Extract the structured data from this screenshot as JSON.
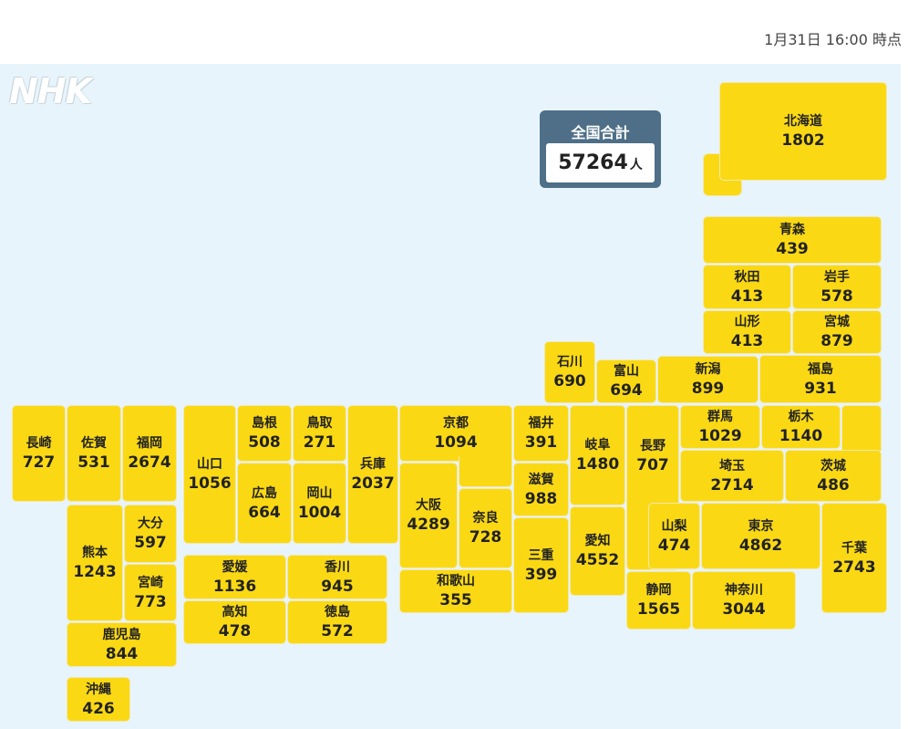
{
  "timestamp": "1月31日 16:00 時点",
  "logo": "NHK",
  "total": {
    "label": "全国合計",
    "value": "57264",
    "unit": "人"
  },
  "prefectures": {
    "hokkaido": {
      "name": "北海道",
      "value": "1802"
    },
    "aomori": {
      "name": "青森",
      "value": "439"
    },
    "akita": {
      "name": "秋田",
      "value": "413"
    },
    "iwate": {
      "name": "岩手",
      "value": "578"
    },
    "yamagata": {
      "name": "山形",
      "value": "413"
    },
    "miyagi": {
      "name": "宮城",
      "value": "879"
    },
    "ishikawa": {
      "name": "石川",
      "value": "690"
    },
    "toyama": {
      "name": "富山",
      "value": "694"
    },
    "niigata": {
      "name": "新潟",
      "value": "899"
    },
    "fukushima": {
      "name": "福島",
      "value": "931"
    },
    "nagasaki": {
      "name": "長崎",
      "value": "727"
    },
    "saga": {
      "name": "佐賀",
      "value": "531"
    },
    "fukuoka": {
      "name": "福岡",
      "value": "2674"
    },
    "yamaguchi": {
      "name": "山口",
      "value": "1056"
    },
    "shimane": {
      "name": "島根",
      "value": "508"
    },
    "tottori": {
      "name": "鳥取",
      "value": "271"
    },
    "hiroshima": {
      "name": "広島",
      "value": "664"
    },
    "okayama": {
      "name": "岡山",
      "value": "1004"
    },
    "hyogo": {
      "name": "兵庫",
      "value": "2037"
    },
    "kyoto": {
      "name": "京都",
      "value": "1094"
    },
    "osaka": {
      "name": "大阪",
      "value": "4289"
    },
    "nara": {
      "name": "奈良",
      "value": "728"
    },
    "wakayama": {
      "name": "和歌山",
      "value": "355"
    },
    "fukui": {
      "name": "福井",
      "value": "391"
    },
    "shiga": {
      "name": "滋賀",
      "value": "988"
    },
    "mie": {
      "name": "三重",
      "value": "399"
    },
    "gifu": {
      "name": "岐阜",
      "value": "1480"
    },
    "aichi": {
      "name": "愛知",
      "value": "4552"
    },
    "nagano": {
      "name": "長野",
      "value": "707"
    },
    "gunma": {
      "name": "群馬",
      "value": "1029"
    },
    "tochigi": {
      "name": "栃木",
      "value": "1140"
    },
    "saitama": {
      "name": "埼玉",
      "value": "2714"
    },
    "ibaraki": {
      "name": "茨城",
      "value": "486"
    },
    "yamanashi": {
      "name": "山梨",
      "value": "474"
    },
    "tokyo": {
      "name": "東京",
      "value": "4862"
    },
    "chiba": {
      "name": "千葉",
      "value": "2743"
    },
    "shizuoka": {
      "name": "静岡",
      "value": "1565"
    },
    "kanagawa": {
      "name": "神奈川",
      "value": "3044"
    },
    "kumamoto": {
      "name": "熊本",
      "value": "1243"
    },
    "oita": {
      "name": "大分",
      "value": "597"
    },
    "miyazaki": {
      "name": "宮崎",
      "value": "773"
    },
    "kagoshima": {
      "name": "鹿児島",
      "value": "844"
    },
    "okinawa": {
      "name": "沖縄",
      "value": "426"
    },
    "ehime": {
      "name": "愛媛",
      "value": "1136"
    },
    "kagawa": {
      "name": "香川",
      "value": "945"
    },
    "kochi": {
      "name": "高知",
      "value": "478"
    },
    "tokushima": {
      "name": "徳島",
      "value": "572"
    }
  },
  "colors": {
    "tile": "#fad914",
    "background": "#e8f4fb",
    "total_box": "#4e6f87"
  }
}
